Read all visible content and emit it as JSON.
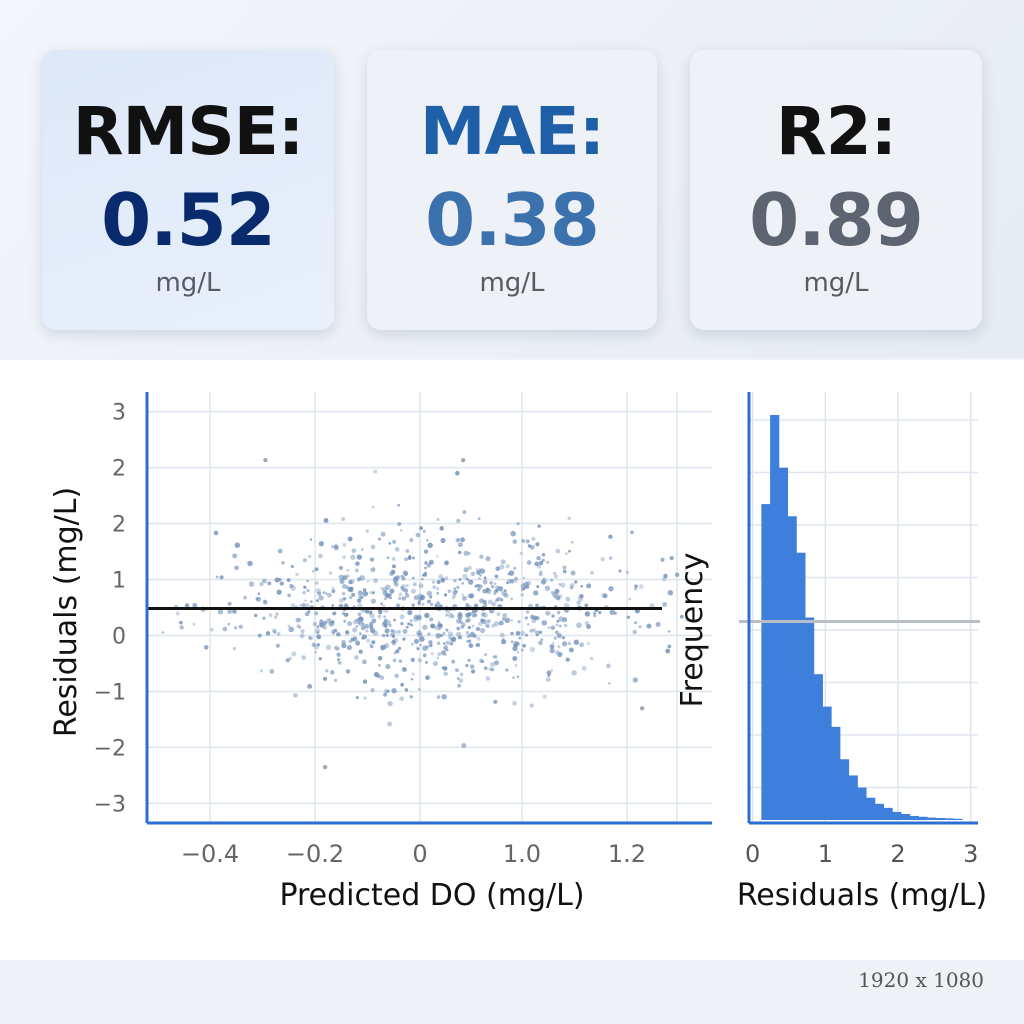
{
  "metrics": {
    "rmse": {
      "label": "RMSE:",
      "value": "0.52",
      "unit": "mg/L",
      "color": "#0a2a6e"
    },
    "mae": {
      "label": "MAE:",
      "value": "0.38",
      "unit": "mg/L",
      "color": "#1f5fa8"
    },
    "r2": {
      "label": "R2:",
      "value": "0.89",
      "unit": "mg/L",
      "color": "#5b6470"
    }
  },
  "footer": {
    "resolution": "1920 x 1080"
  },
  "chart_data": [
    {
      "type": "scatter",
      "xlabel": "Predicted DO (mg/L)",
      "ylabel": "Residuals (mg/L)",
      "xlim": [
        -0.5,
        1.3
      ],
      "ylim": [
        -3.3,
        3.3
      ],
      "x_ticks": [
        -0.4,
        -0.2,
        0,
        1.0,
        1.2
      ],
      "x_tick_labels": [
        "−0.4",
        "−0.2",
        "0",
        "1.0",
        "1.2"
      ],
      "y_tick_labels": [
        "3",
        "2",
        "2",
        "1",
        "0",
        "−1",
        "−2",
        "−3"
      ],
      "reference_line_y": 0,
      "point_color": "#6f8fb8",
      "grid": true
    },
    {
      "type": "bar",
      "xlabel": "Residuals (mg/L)",
      "ylabel": "Frequency",
      "xlim": [
        -0.05,
        3.1
      ],
      "x_tick_labels": [
        "0",
        "1",
        "2",
        "3"
      ],
      "bin_width": 0.12,
      "bins_start": 0.12,
      "values": [
        0.78,
        1.0,
        0.87,
        0.75,
        0.66,
        0.5,
        0.36,
        0.28,
        0.23,
        0.15,
        0.11,
        0.08,
        0.055,
        0.04,
        0.03,
        0.02,
        0.015,
        0.01,
        0.008,
        0.006,
        0.005,
        0.004,
        0.003
      ],
      "reference_line_level": 0.49,
      "bar_color": "#3f7fdc",
      "grid": true
    }
  ]
}
